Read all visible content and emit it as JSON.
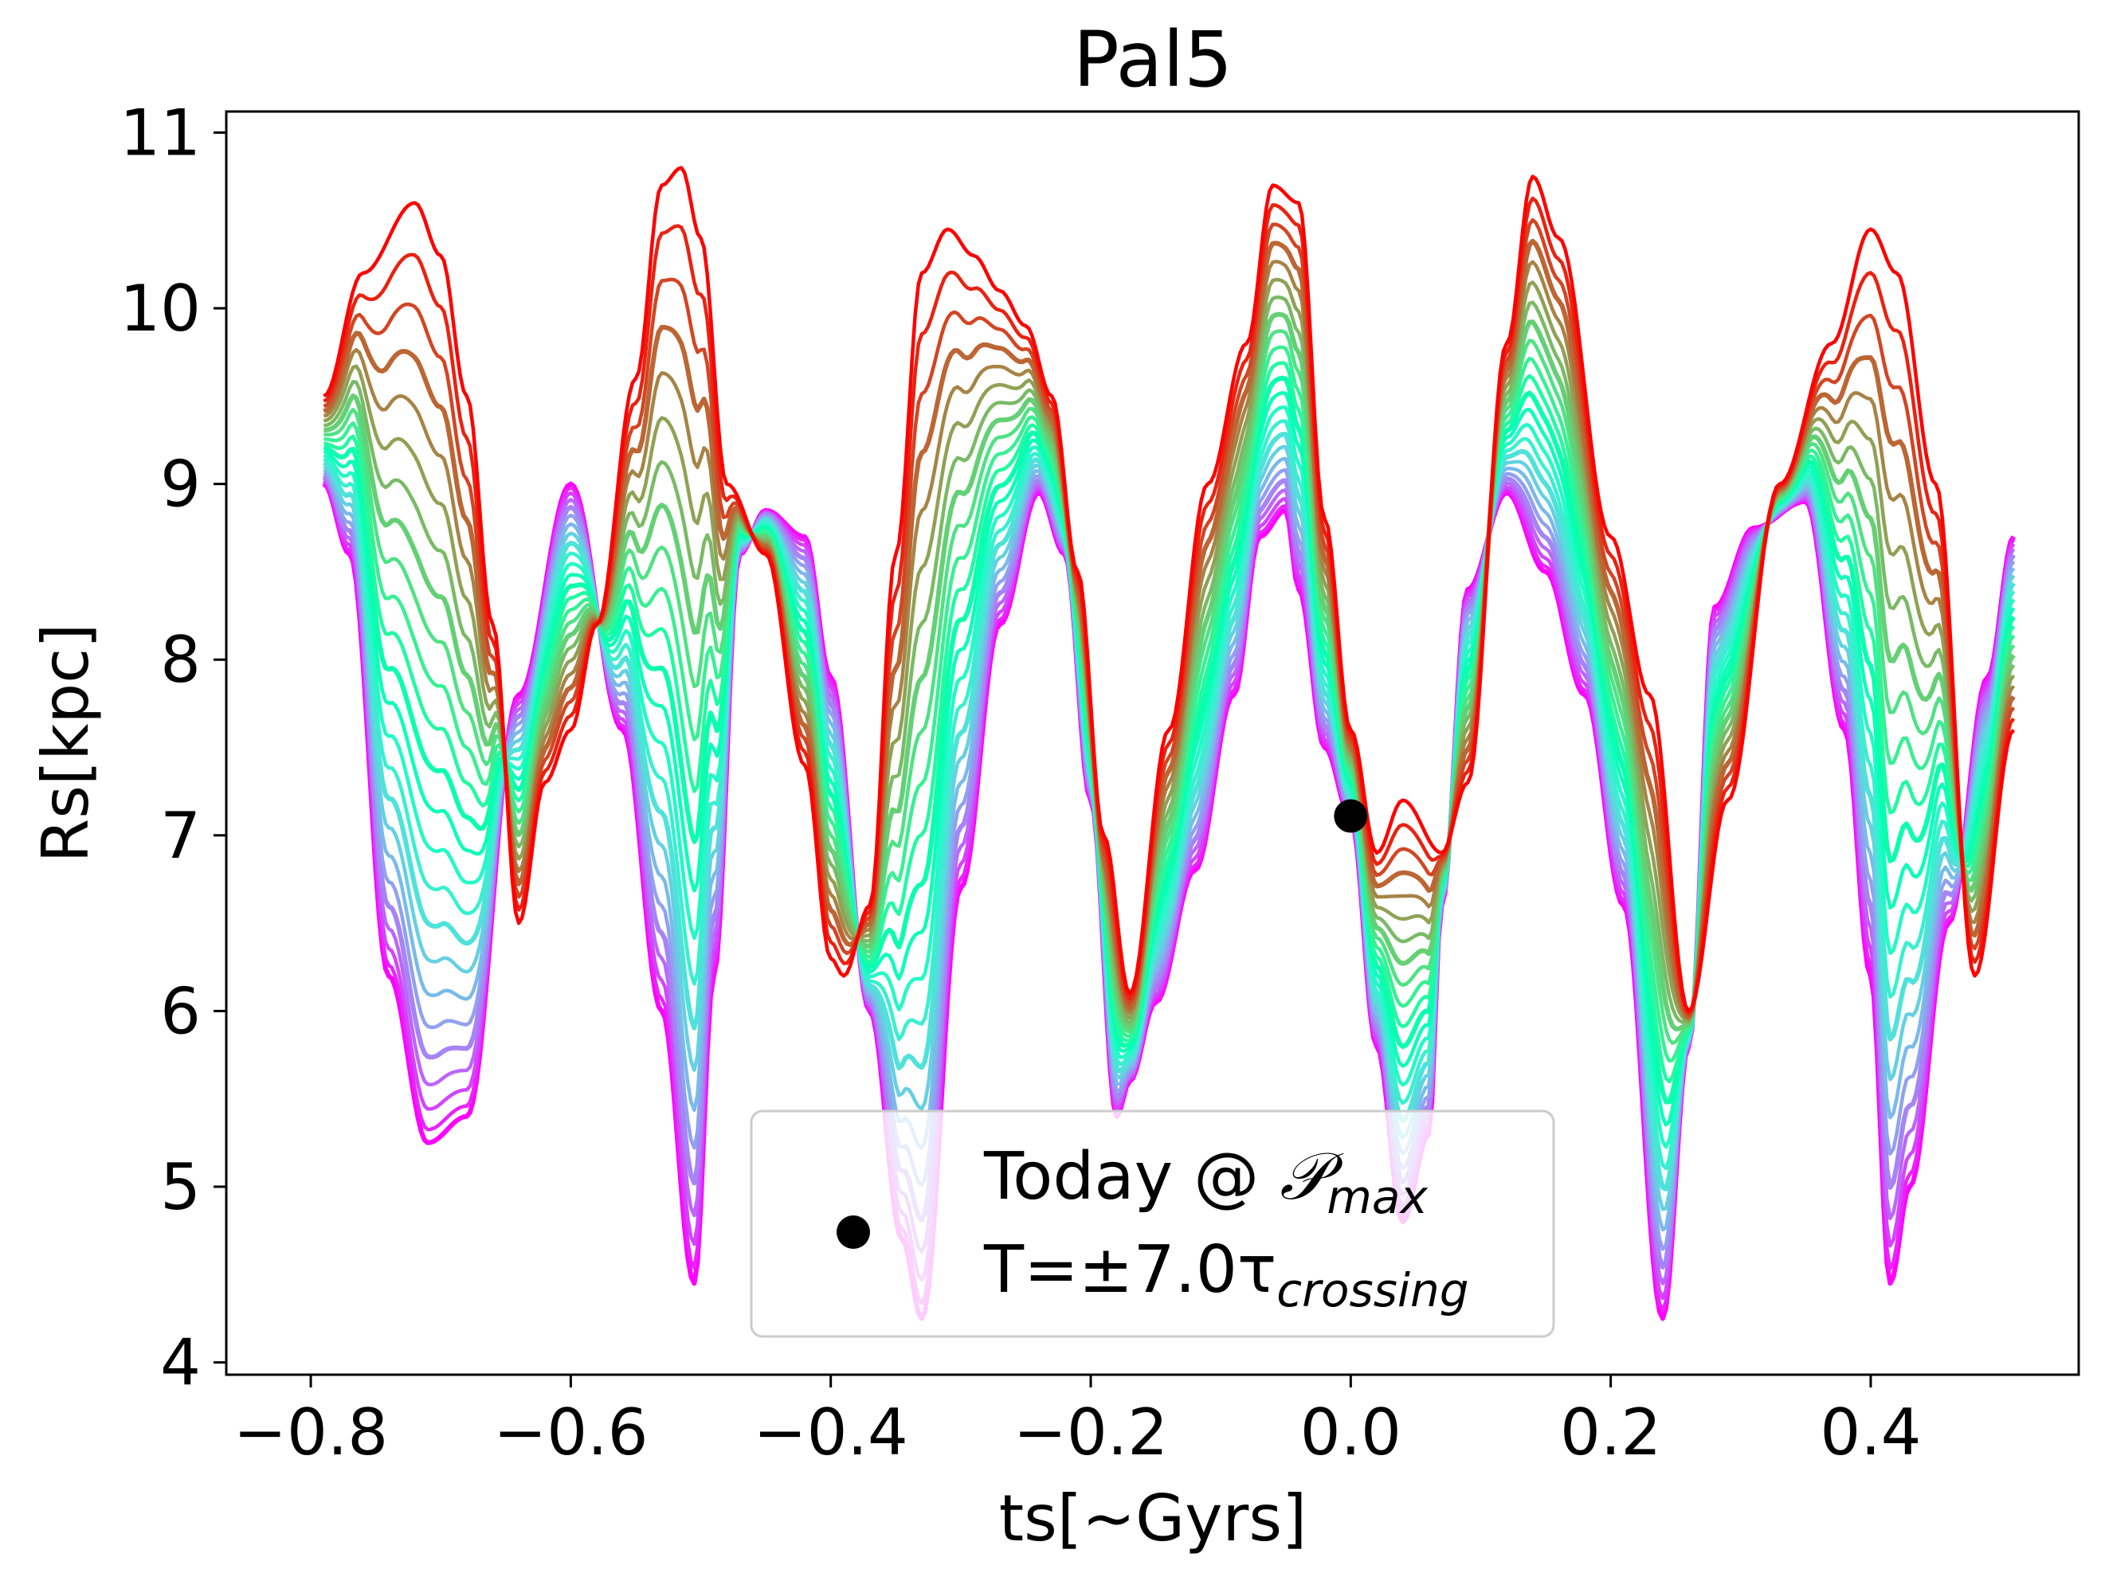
{
  "chart_data": {
    "type": "line",
    "title": "Pal5",
    "xlabel": "ts[~Gyrs]",
    "ylabel": "Rs[kpc]",
    "xlim": [
      -0.865,
      0.56
    ],
    "ylim": [
      3.93,
      11.12
    ],
    "xticks": [
      -0.8,
      -0.6,
      -0.4,
      -0.2,
      0.0,
      0.2,
      0.4
    ],
    "xtick_labels": [
      "−0.8",
      "−0.6",
      "−0.4",
      "−0.2",
      "0.0",
      "0.2",
      "0.4"
    ],
    "yticks": [
      4,
      5,
      6,
      7,
      8,
      9,
      10,
      11
    ],
    "ytick_labels": [
      "4",
      "5",
      "6",
      "7",
      "8",
      "9",
      "10",
      "11"
    ],
    "colormap": "rainbow",
    "x_range": [
      -0.79,
      0.51
    ],
    "n_series": 24,
    "series_note": "ensemble of orbit integrations, colored purple (lowest) to red (highest)",
    "series_envelope_lowest": {
      "x": [
        -0.79,
        -0.77,
        -0.74,
        -0.71,
        -0.68,
        -0.64,
        -0.6,
        -0.56,
        -0.53,
        -0.505,
        -0.49,
        -0.47,
        -0.45,
        -0.42,
        -0.4,
        -0.37,
        -0.345,
        -0.33,
        -0.3,
        -0.27,
        -0.24,
        -0.22,
        -0.2,
        -0.18,
        -0.17,
        -0.15,
        -0.12,
        -0.09,
        -0.07,
        -0.05,
        -0.04,
        -0.02,
        0.0,
        0.02,
        0.04,
        0.06,
        0.07,
        0.09,
        0.12,
        0.15,
        0.18,
        0.21,
        0.24,
        0.26,
        0.28,
        0.31,
        0.35,
        0.38,
        0.4,
        0.415,
        0.43,
        0.46,
        0.49,
        0.51
      ],
      "y": [
        9.0,
        8.6,
        6.2,
        5.25,
        5.4,
        7.8,
        9.0,
        7.6,
        6.0,
        4.45,
        6.2,
        8.6,
        8.85,
        8.7,
        7.9,
        6.0,
        4.7,
        4.25,
        6.7,
        8.2,
        8.95,
        8.6,
        7.2,
        5.4,
        5.6,
        6.05,
        6.8,
        7.8,
        8.7,
        8.85,
        8.4,
        7.5,
        7.1,
        5.8,
        4.8,
        5.3,
        6.6,
        8.4,
        8.95,
        8.5,
        7.8,
        6.6,
        4.25,
        5.8,
        8.3,
        8.75,
        8.9,
        7.6,
        6.2,
        4.45,
        5.0,
        6.5,
        7.9,
        8.7
      ]
    },
    "series_envelope_highest": {
      "x": [
        -0.79,
        -0.76,
        -0.72,
        -0.7,
        -0.68,
        -0.66,
        -0.64,
        -0.62,
        -0.6,
        -0.58,
        -0.55,
        -0.53,
        -0.515,
        -0.5,
        -0.48,
        -0.45,
        -0.42,
        -0.4,
        -0.39,
        -0.37,
        -0.35,
        -0.33,
        -0.31,
        -0.29,
        -0.27,
        -0.25,
        -0.23,
        -0.21,
        -0.19,
        -0.17,
        -0.14,
        -0.11,
        -0.08,
        -0.06,
        -0.04,
        -0.02,
        0.0,
        0.02,
        0.04,
        0.07,
        0.09,
        0.12,
        0.14,
        0.16,
        0.2,
        0.23,
        0.26,
        0.29,
        0.33,
        0.37,
        0.4,
        0.42,
        0.45,
        0.48,
        0.51
      ],
      "y": [
        9.5,
        10.2,
        10.6,
        10.3,
        9.5,
        8.2,
        6.5,
        7.3,
        7.6,
        8.2,
        9.6,
        10.7,
        10.8,
        10.4,
        9.0,
        8.6,
        7.4,
        6.3,
        6.2,
        6.6,
        8.6,
        10.2,
        10.45,
        10.3,
        10.1,
        9.9,
        9.5,
        8.5,
        7.0,
        6.1,
        7.6,
        9.0,
        9.8,
        10.7,
        10.6,
        8.8,
        7.6,
        6.9,
        7.2,
        6.9,
        7.3,
        9.8,
        10.75,
        10.4,
        8.7,
        7.8,
        6.0,
        7.2,
        9.0,
        9.8,
        10.45,
        10.2,
        9.0,
        6.2,
        7.6
      ]
    },
    "marker": {
      "label": "Today @ 𝒫_max",
      "x": 0.0,
      "y": 7.11,
      "color": "#000000"
    },
    "legend": {
      "placement": "lower center",
      "entries": [
        {
          "type": "marker",
          "text_main": "Today @ ",
          "text_script": "𝒫",
          "text_sub": "max"
        },
        {
          "type": "text",
          "text_main": "T=±7.0τ",
          "text_sub": "crossing"
        }
      ]
    }
  }
}
